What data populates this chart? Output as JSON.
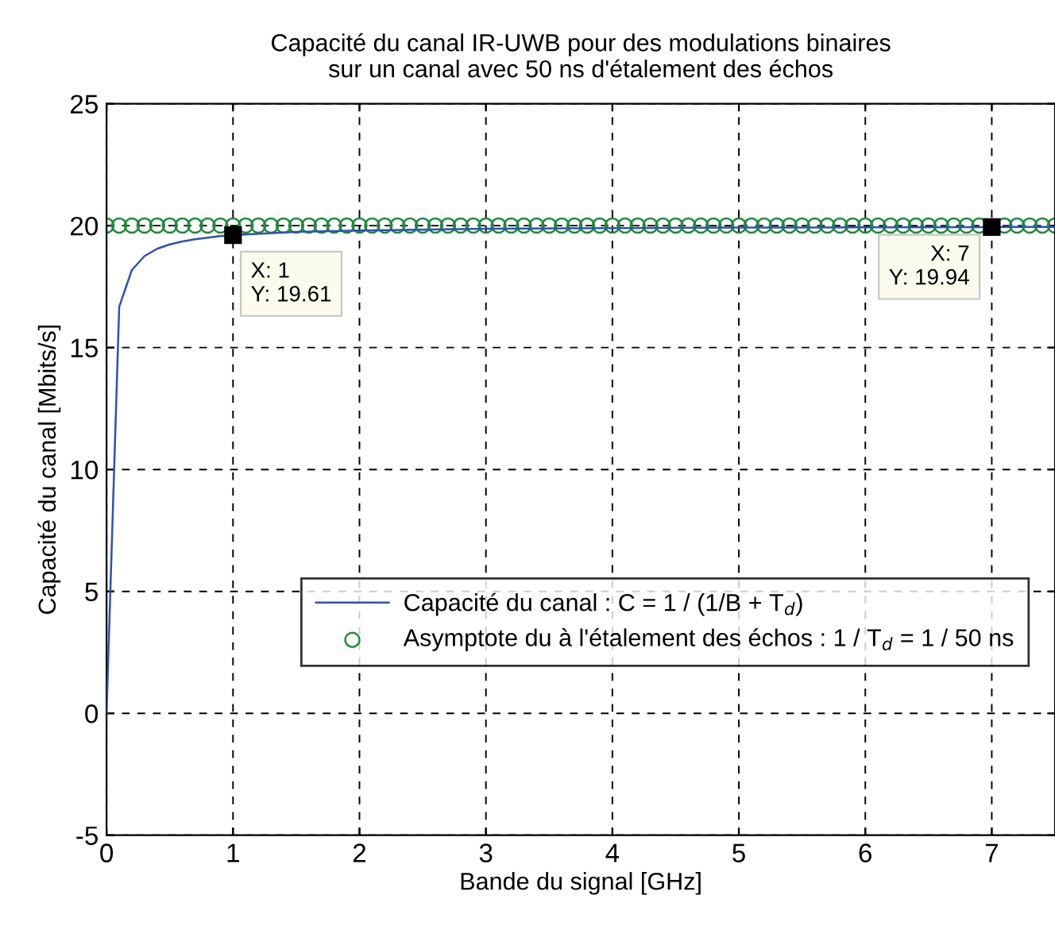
{
  "chart_data": {
    "type": "line",
    "title": "Capacité du canal IR-UWB pour des modulations binaires\nsur un canal avec 50 ns d'étalement des échos",
    "xlabel": "Bande du signal [GHz]",
    "ylabel": "Capacité du canal [Mbits/s]",
    "xlim": [
      0,
      7.5
    ],
    "xticks": [
      0,
      1,
      2,
      3,
      4,
      5,
      6,
      7
    ],
    "ylim": [
      -5,
      25
    ],
    "yticks": [
      -5,
      0,
      5,
      10,
      15,
      20,
      25
    ],
    "grid": true,
    "legend": "bottom right",
    "series": [
      {
        "name": "Capacité du canal : C = 1 / (1/B + T$_{d}$)",
        "color": "#3050b0",
        "marker": "none",
        "line_style": "solid",
        "x": [
          0,
          0.1,
          0.2,
          0.3,
          0.4,
          0.5,
          0.6,
          0.7,
          0.8,
          0.9,
          1,
          1.5,
          2,
          3,
          4,
          5,
          6,
          7,
          7.5
        ],
        "values": [
          0,
          16.67,
          18.18,
          18.75,
          19.05,
          19.23,
          19.35,
          19.44,
          19.51,
          19.57,
          19.61,
          19.74,
          19.8,
          19.87,
          19.9,
          19.92,
          19.93,
          19.94,
          19.95
        ]
      },
      {
        "name": "Asymptote du à l'étalement des échos : 1 / T$_{d}$ = 1 / 50 ns",
        "type": "scatter",
        "color": "#1f8a3c",
        "marker": "circle",
        "x": [
          0,
          0.1,
          0.2,
          0.3,
          0.4,
          0.5,
          0.6,
          0.7,
          0.8,
          0.9,
          1,
          1.1,
          1.2,
          1.3,
          1.4,
          1.5,
          1.6,
          1.7,
          1.8,
          1.9,
          2,
          2.1,
          2.2,
          2.3,
          2.4,
          2.5,
          2.6,
          2.7,
          2.8,
          2.9,
          3,
          3.1,
          3.2,
          3.3,
          3.4,
          3.5,
          3.6,
          3.7,
          3.8,
          3.9,
          4,
          4.1,
          4.2,
          4.3,
          4.4,
          4.5,
          4.6,
          4.7,
          4.8,
          4.9,
          5,
          5.1,
          5.2,
          5.3,
          5.4,
          5.5,
          5.6,
          5.7,
          5.8,
          5.9,
          6,
          6.1,
          6.2,
          6.3,
          6.4,
          6.5,
          6.6,
          6.7,
          6.8,
          6.9,
          7,
          7.1,
          7.2,
          7.3,
          7.4,
          7.5
        ],
        "values": [
          20,
          20,
          20,
          20,
          20,
          20,
          20,
          20,
          20,
          20,
          20,
          20,
          20,
          20,
          20,
          20,
          20,
          20,
          20,
          20,
          20,
          20,
          20,
          20,
          20,
          20,
          20,
          20,
          20,
          20,
          20,
          20,
          20,
          20,
          20,
          20,
          20,
          20,
          20,
          20,
          20,
          20,
          20,
          20,
          20,
          20,
          20,
          20,
          20,
          20,
          20,
          20,
          20,
          20,
          20,
          20,
          20,
          20,
          20,
          20,
          20,
          20,
          20,
          20,
          20,
          20,
          20,
          20,
          20,
          20,
          null,
          20,
          20,
          20,
          20,
          20
        ]
      }
    ],
    "annotations": [
      {
        "text": "X: 1\nY: 19.61",
        "x": 1,
        "y": 19.61
      },
      {
        "text": "X: 7\nY: 19.94",
        "x": 7,
        "y": 19.94
      }
    ]
  }
}
